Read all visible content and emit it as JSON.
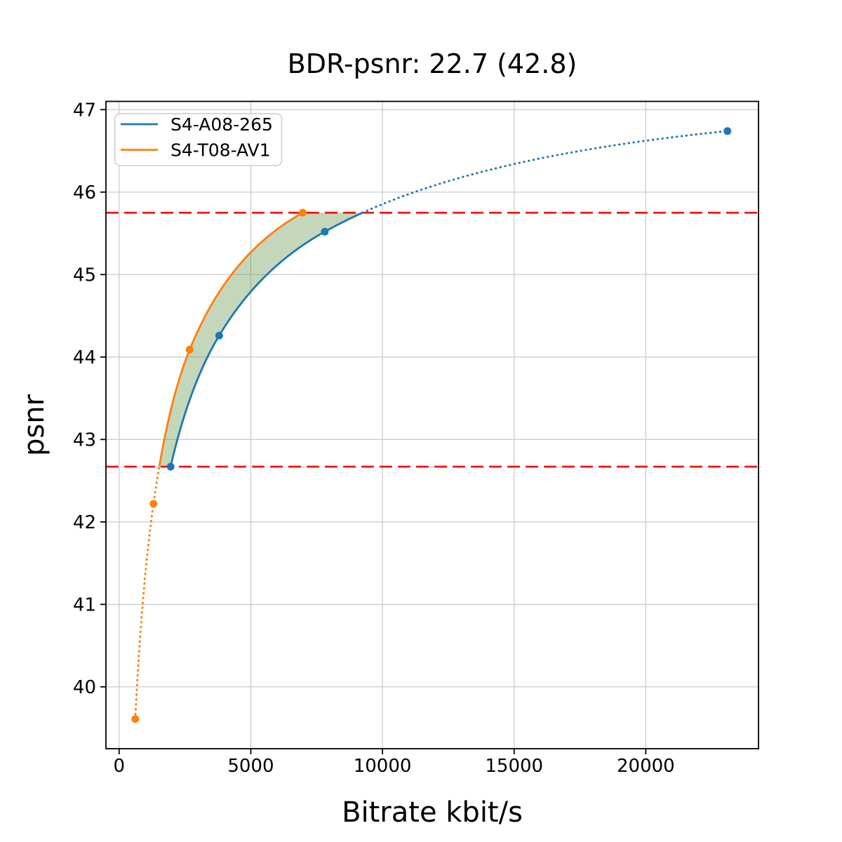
{
  "title": "BDR-psnr: 22.7 (42.8)",
  "chart_data": {
    "type": "line",
    "title": "BDR-psnr: 22.7 (42.8)",
    "xlabel": "Bitrate kbit/s",
    "ylabel": "psnr",
    "xlim": [
      -500,
      24280
    ],
    "ylim": [
      39.25,
      47.1
    ],
    "x_ticks": [
      0,
      5000,
      10000,
      15000,
      20000
    ],
    "x_tick_labels": [
      "0",
      "5000",
      "10000",
      "15000",
      "20000"
    ],
    "y_ticks": [
      40,
      41,
      42,
      43,
      44,
      45,
      46,
      47
    ],
    "y_tick_labels": [
      "40",
      "41",
      "42",
      "43",
      "44",
      "45",
      "46",
      "47"
    ],
    "grid": true,
    "grid_color": "#cccccc",
    "legend": {
      "position": "upper-left",
      "entries": [
        "S4-A08-265",
        "S4-T08-AV1"
      ]
    },
    "series": [
      {
        "name": "S4-A08-265",
        "color": "#1f77b4",
        "marker": "circle",
        "points": [
          [
            1955,
            42.67
          ],
          [
            3800,
            44.26
          ],
          [
            7810,
            45.52
          ],
          [
            23100,
            46.74
          ]
        ],
        "dotted_region": "above-overlap"
      },
      {
        "name": "S4-T08-AV1",
        "color": "#ff7f0e",
        "marker": "circle",
        "points": [
          [
            612,
            39.61
          ],
          [
            1306,
            42.22
          ],
          [
            2680,
            44.09
          ],
          [
            6975,
            45.75
          ]
        ],
        "dotted_region": "below-overlap"
      }
    ],
    "overlap_interval_lines": {
      "color": "#ff0000",
      "style": "dashed",
      "psnr_values": [
        42.67,
        45.75
      ]
    },
    "bd_shade": {
      "color": "#5a8c3c",
      "opacity": 0.35
    }
  }
}
